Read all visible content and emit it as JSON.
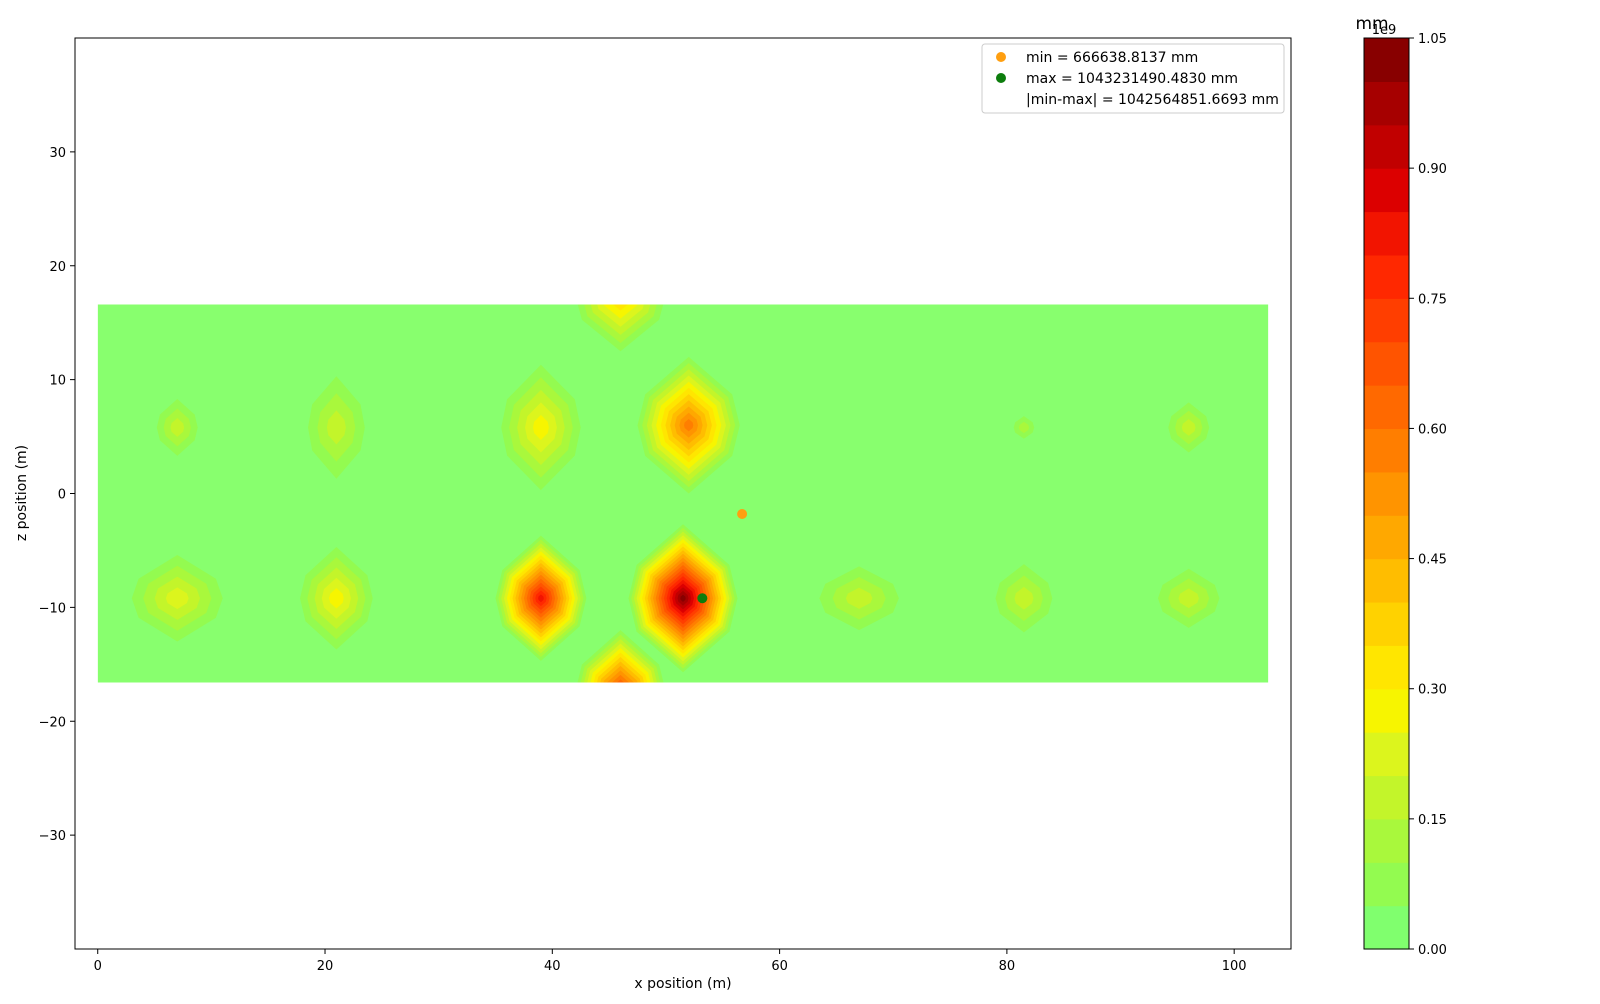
{
  "chart_data": {
    "type": "contour",
    "xlabel": "x position (m)",
    "ylabel": "z position (m)",
    "xlim": [
      -2,
      105
    ],
    "ylim": [
      -40,
      40
    ],
    "x_ticks": [
      0,
      20,
      40,
      60,
      80,
      100
    ],
    "x_tick_labels": [
      "0",
      "20",
      "40",
      "60",
      "80",
      "100"
    ],
    "y_ticks": [
      -30,
      -20,
      -10,
      0,
      10,
      20,
      30
    ],
    "y_tick_labels": [
      "−30",
      "−20",
      "−10",
      "0",
      "10",
      "20",
      "30"
    ],
    "field_extent": {
      "x": [
        0,
        103
      ],
      "z": [
        -16.6,
        16.6
      ]
    },
    "field_base_color": "#88ff6e",
    "hotspots": [
      {
        "x": 51.5,
        "z": -9.2,
        "value": 1.0,
        "rx": 4.8,
        "rz": 6.5
      },
      {
        "x": 52.0,
        "z": 6.0,
        "value": 0.55,
        "rx": 4.5,
        "rz": 6.0
      },
      {
        "x": 39.0,
        "z": -9.2,
        "value": 0.8,
        "rx": 4.0,
        "rz": 5.5
      },
      {
        "x": 39.0,
        "z": 5.8,
        "value": 0.25,
        "rx": 3.5,
        "rz": 5.5
      },
      {
        "x": 46.0,
        "z": -17.5,
        "value": 0.7,
        "rx": 4.0,
        "rz": 5.5
      },
      {
        "x": 46.0,
        "z": 17.5,
        "value": 0.35,
        "rx": 4.0,
        "rz": 5.0
      },
      {
        "x": 7.0,
        "z": -9.2,
        "value": 0.22,
        "rx": 4.0,
        "rz": 3.8
      },
      {
        "x": 21.0,
        "z": -9.2,
        "value": 0.24,
        "rx": 3.2,
        "rz": 4.5
      },
      {
        "x": 67.0,
        "z": -9.2,
        "value": 0.16,
        "rx": 3.5,
        "rz": 2.8
      },
      {
        "x": 81.5,
        "z": -9.2,
        "value": 0.16,
        "rx": 2.5,
        "rz": 3.0
      },
      {
        "x": 96.0,
        "z": -9.2,
        "value": 0.13,
        "rx": 2.7,
        "rz": 2.6
      },
      {
        "x": 7.0,
        "z": 5.8,
        "value": 0.14,
        "rx": 1.8,
        "rz": 2.5
      },
      {
        "x": 21.0,
        "z": 5.8,
        "value": 0.16,
        "rx": 2.5,
        "rz": 4.5
      },
      {
        "x": 96.0,
        "z": 5.8,
        "value": 0.13,
        "rx": 1.8,
        "rz": 2.2
      },
      {
        "x": 81.5,
        "z": 5.8,
        "value": 0.1,
        "rx": 0.9,
        "rz": 1.0
      }
    ],
    "min_point": {
      "x": 56.7,
      "z": -1.8,
      "color": "#ff9f10"
    },
    "max_point": {
      "x": 53.2,
      "z": -9.2,
      "color": "#0d7d0d"
    },
    "legend": {
      "position": "top-right",
      "entries": [
        {
          "label": "min = 666638.8137 mm",
          "marker_color": "#ff9f10"
        },
        {
          "label": "max = 1043231490.4830 mm",
          "marker_color": "#0d7d0d"
        },
        {
          "label": "|min-max| = 1042564851.6693 mm",
          "marker_color": ""
        }
      ]
    },
    "colorbar": {
      "title": "mm",
      "multiplier": "1e9",
      "range": [
        0,
        1.05
      ],
      "ticks": [
        0.0,
        0.15,
        0.3,
        0.45,
        0.6,
        0.75,
        0.9,
        1.05
      ],
      "tick_labels": [
        "0.00",
        "0.15",
        "0.30",
        "0.45",
        "0.60",
        "0.75",
        "0.90",
        "1.05"
      ],
      "levels": [
        "#80ff6e",
        "#93fb50",
        "#a9f83c",
        "#c3f52a",
        "#dcf51d",
        "#f7f500",
        "#ffe600",
        "#ffd200",
        "#ffbd00",
        "#ffa800",
        "#ff9400",
        "#ff7e00",
        "#ff6900",
        "#ff5400",
        "#ff3e00",
        "#ff2800",
        "#f21400",
        "#dc0000",
        "#c10000",
        "#a60000",
        "#880000"
      ]
    }
  }
}
